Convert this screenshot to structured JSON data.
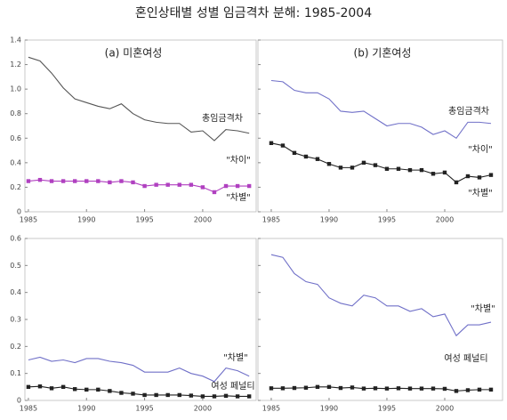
{
  "title": "혼인상태별 성별 임금격차 분해: 1985-2004",
  "chart_data": [
    {
      "type": "line",
      "subtitle": "(a) 미혼여성",
      "x": [
        1985,
        1986,
        1987,
        1988,
        1989,
        1990,
        1991,
        1992,
        1993,
        1994,
        1995,
        1996,
        1997,
        1998,
        1999,
        2000,
        2001,
        2002,
        2003,
        2004
      ],
      "xlim": [
        1984.7,
        2004.6
      ],
      "xticks": [
        1985,
        1990,
        1995,
        2000
      ],
      "ylim": [
        0,
        1.4
      ],
      "yticks": [
        0,
        0.2,
        0.4,
        0.6,
        0.8,
        {
          "value": 1,
          "label": "1.0"
        },
        1.2,
        1.4
      ],
      "ytick_labels": true,
      "series": [
        {
          "name": "총임금격차",
          "color": "#555555",
          "marker": null,
          "values": [
            1.26,
            1.23,
            1.13,
            1.01,
            0.92,
            0.89,
            0.86,
            0.84,
            0.88,
            0.8,
            0.75,
            0.73,
            0.72,
            0.72,
            0.65,
            0.66,
            0.58,
            0.67,
            0.66,
            0.64
          ]
        },
        {
          "name": "\"차이\"",
          "color": "#b040c0",
          "marker": "square",
          "values": [
            0.25,
            0.26,
            0.25,
            0.25,
            0.25,
            0.25,
            0.25,
            0.24,
            0.25,
            0.24,
            0.21,
            0.22,
            0.22,
            0.22,
            0.22,
            0.2,
            0.16,
            0.21,
            0.21,
            0.21
          ]
        }
      ],
      "annotations": [
        "\"차별\""
      ]
    },
    {
      "type": "line",
      "subtitle": "(b) 기혼여성",
      "x": [
        1985,
        1986,
        1987,
        1988,
        1989,
        1990,
        1991,
        1992,
        1993,
        1994,
        1995,
        1996,
        1997,
        1998,
        1999,
        2000,
        2001,
        2002,
        2003,
        2004
      ],
      "xlim": [
        1983.85,
        2005
      ],
      "xticks": [
        1985,
        1990,
        1995,
        2000
      ],
      "ylim": [
        0,
        1.4
      ],
      "yticks": [
        0,
        0.2,
        0.4,
        0.6,
        0.8,
        {
          "value": 1,
          "label": "1.0"
        },
        1.2,
        1.4
      ],
      "ytick_labels": false,
      "series": [
        {
          "name": "총임금격차",
          "color": "#7070c8",
          "marker": null,
          "values": [
            1.07,
            1.06,
            0.99,
            0.97,
            0.97,
            0.92,
            0.82,
            0.81,
            0.82,
            0.76,
            0.7,
            0.72,
            0.72,
            0.69,
            0.63,
            0.66,
            0.6,
            0.73,
            0.73,
            0.72
          ]
        },
        {
          "name": "\"차이\"",
          "color": "#222222",
          "marker": "square",
          "values": [
            0.56,
            0.54,
            0.48,
            0.45,
            0.43,
            0.39,
            0.36,
            0.36,
            0.4,
            0.38,
            0.35,
            0.35,
            0.34,
            0.34,
            0.31,
            0.32,
            0.24,
            0.29,
            0.28,
            0.3
          ]
        }
      ],
      "annotations": [
        "\"차별\""
      ]
    },
    {
      "type": "line",
      "x": [
        1985,
        1986,
        1987,
        1988,
        1989,
        1990,
        1991,
        1992,
        1993,
        1994,
        1995,
        1996,
        1997,
        1998,
        1999,
        2000,
        2001,
        2002,
        2003,
        2004
      ],
      "xlim": [
        1984.7,
        2004.6
      ],
      "xticks": [
        1985,
        1990,
        1995,
        2000
      ],
      "ylim": [
        0,
        0.6
      ],
      "yticks": [
        0,
        0.1,
        0.2,
        0.3,
        0.4,
        0.5,
        0.6
      ],
      "ytick_labels": true,
      "series": [
        {
          "name": "\"차별\"",
          "color": "#7070c8",
          "marker": null,
          "values": [
            0.15,
            0.16,
            0.145,
            0.15,
            0.14,
            0.155,
            0.155,
            0.145,
            0.14,
            0.13,
            0.105,
            0.105,
            0.105,
            0.12,
            0.1,
            0.09,
            0.07,
            0.12,
            0.11,
            0.09
          ]
        },
        {
          "name": "여성 페널티",
          "color": "#222222",
          "marker": "square",
          "values": [
            0.05,
            0.052,
            0.045,
            0.05,
            0.042,
            0.04,
            0.04,
            0.035,
            0.028,
            0.025,
            0.02,
            0.02,
            0.02,
            0.02,
            0.018,
            0.015,
            0.015,
            0.017,
            0.015,
            0.015
          ]
        }
      ]
    },
    {
      "type": "line",
      "x": [
        1985,
        1986,
        1987,
        1988,
        1989,
        1990,
        1991,
        1992,
        1993,
        1994,
        1995,
        1996,
        1997,
        1998,
        1999,
        2000,
        2001,
        2002,
        2003,
        2004
      ],
      "xlim": [
        1983.85,
        2005
      ],
      "xticks": [
        1985,
        1990,
        1995,
        2000
      ],
      "ylim": [
        0,
        0.6
      ],
      "yticks": [
        0,
        0.1,
        0.2,
        0.3,
        0.4,
        0.5,
        0.6
      ],
      "ytick_labels": false,
      "series": [
        {
          "name": "\"차별\"",
          "color": "#7070c8",
          "marker": null,
          "values": [
            0.54,
            0.53,
            0.47,
            0.44,
            0.43,
            0.38,
            0.36,
            0.35,
            0.39,
            0.38,
            0.35,
            0.35,
            0.33,
            0.34,
            0.31,
            0.32,
            0.24,
            0.28,
            0.28,
            0.29
          ]
        },
        {
          "name": "여성 페널티",
          "color": "#222222",
          "marker": "square",
          "values": [
            0.045,
            0.045,
            0.046,
            0.047,
            0.05,
            0.05,
            0.046,
            0.048,
            0.044,
            0.045,
            0.044,
            0.045,
            0.044,
            0.044,
            0.044,
            0.043,
            0.035,
            0.038,
            0.04,
            0.04
          ]
        }
      ]
    }
  ]
}
